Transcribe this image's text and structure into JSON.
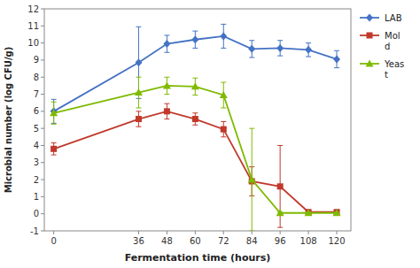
{
  "chart_data": {
    "type": "line",
    "x_label": "Fermentation time (hours)",
    "y_label": "Microbial number (log CFU/g)",
    "x": [
      0,
      36,
      48,
      60,
      72,
      84,
      96,
      108,
      120
    ],
    "series": [
      {
        "name": "LAB",
        "color": "#4472c4",
        "marker": "diamond",
        "values": [
          6.0,
          8.85,
          9.95,
          10.2,
          10.4,
          9.65,
          9.7,
          9.6,
          9.05
        ],
        "errors": [
          0.7,
          2.1,
          0.5,
          0.5,
          0.7,
          0.5,
          0.45,
          0.4,
          0.5
        ]
      },
      {
        "name": "Mol\nd",
        "color": "#c0392b",
        "marker": "square",
        "values": [
          3.8,
          5.55,
          6.0,
          5.55,
          4.95,
          1.9,
          1.6,
          0.1,
          0.1
        ],
        "errors": [
          0.35,
          0.45,
          0.45,
          0.35,
          0.45,
          0.85,
          2.4,
          0.08,
          0.08
        ]
      },
      {
        "name": "Yeas\nt",
        "color": "#7fba00",
        "marker": "triangle",
        "values": [
          5.9,
          7.1,
          7.5,
          7.45,
          6.95,
          2.0,
          0.05,
          0.05,
          0.05
        ],
        "errors": [
          0.65,
          0.9,
          0.5,
          0.5,
          0.75,
          3.0,
          0.05,
          0.05,
          0.05
        ]
      }
    ],
    "xlim": [
      -4,
      126
    ],
    "ylim": [
      -1,
      12
    ],
    "xticks": [
      0,
      36,
      48,
      60,
      72,
      84,
      96,
      108,
      120
    ],
    "yticks": [
      -1,
      0,
      1,
      2,
      3,
      4,
      5,
      6,
      7,
      8,
      9,
      10,
      11,
      12
    ],
    "grid": false,
    "legend": "right"
  }
}
